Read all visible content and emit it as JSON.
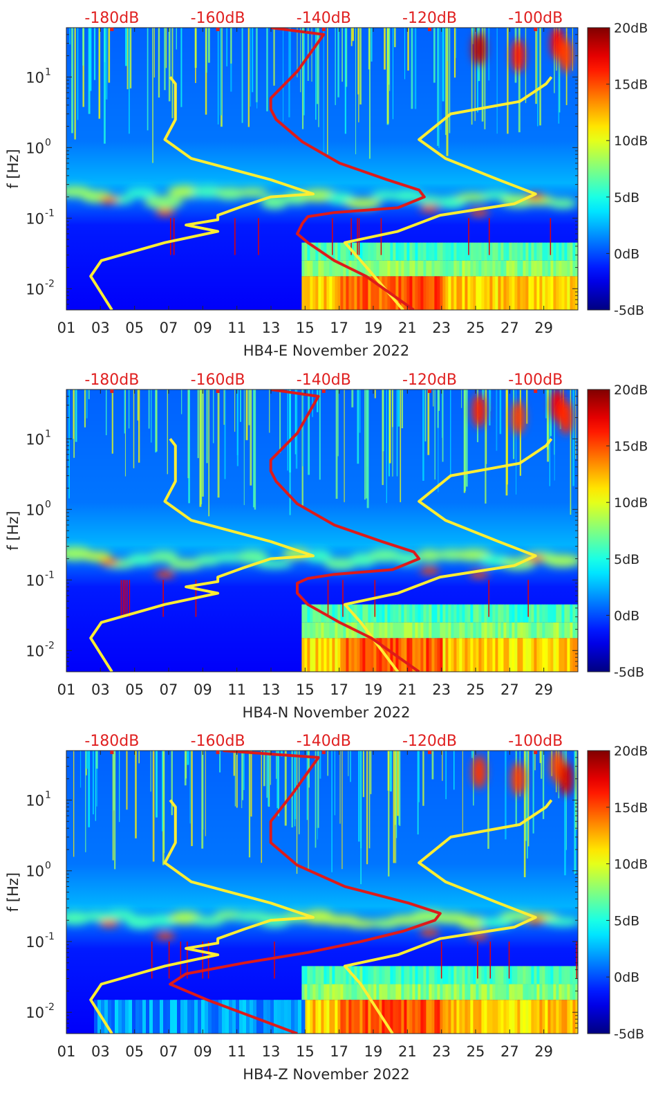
{
  "colorbar": {
    "tick_labels": [
      "20dB",
      "15dB",
      "10dB",
      "5dB",
      "0dB",
      "-5dB"
    ],
    "tick_values": [
      20,
      15,
      10,
      5,
      0,
      -5
    ],
    "range": [
      -5,
      20
    ]
  },
  "chart_data": [
    {
      "type": "heatmap",
      "title": "",
      "xlabel": "HB4-E November 2022",
      "ylabel": "f [Hz]",
      "x_ticks": [
        "01",
        "03",
        "05",
        "07",
        "09",
        "11",
        "13",
        "15",
        "17",
        "19",
        "21",
        "23",
        "25",
        "27",
        "29"
      ],
      "x_tick_values": [
        1,
        3,
        5,
        7,
        9,
        11,
        13,
        15,
        17,
        19,
        21,
        23,
        25,
        27,
        29
      ],
      "xlim": [
        1,
        31
      ],
      "y_ticks": [
        "10-2",
        "10-1",
        "100",
        "101"
      ],
      "y_tick_values": [
        0.01,
        0.1,
        1,
        10
      ],
      "ylim": [
        0.005,
        50
      ],
      "yscale": "log",
      "top_axis_labels": [
        "-180dB",
        "-160dB",
        "-140dB",
        "-120dB",
        "-100dB"
      ],
      "top_axis_values": [
        -180,
        -160,
        -140,
        -120,
        -100
      ],
      "top_axis_range": [
        -188.6,
        -92
      ],
      "series": [
        {
          "color": "#ffee33",
          "points": [
            [
              -180,
              0.005
            ],
            [
              -184,
              0.015
            ],
            [
              -182,
              0.025
            ],
            [
              -170,
              0.045
            ],
            [
              -160,
              0.065
            ],
            [
              -166,
              0.08
            ],
            [
              -160,
              0.095
            ],
            [
              -160,
              0.11
            ],
            [
              -155,
              0.15
            ],
            [
              -150,
              0.2
            ],
            [
              -142,
              0.22
            ],
            [
              -150,
              0.35
            ],
            [
              -165,
              0.7
            ],
            [
              -170,
              1.3
            ],
            [
              -168,
              2.5
            ],
            [
              -168,
              8
            ],
            [
              -169,
              10
            ]
          ]
        },
        {
          "color": "#ffee33",
          "points": [
            [
              -125,
              0.005
            ],
            [
              -133,
              0.025
            ],
            [
              -136,
              0.045
            ],
            [
              -126,
              0.065
            ],
            [
              -118,
              0.11
            ],
            [
              -104,
              0.16
            ],
            [
              -100,
              0.22
            ],
            [
              -107,
              0.35
            ],
            [
              -117,
              0.7
            ],
            [
              -122,
              1.3
            ],
            [
              -116,
              3
            ],
            [
              -103,
              4.5
            ],
            [
              -98,
              8
            ],
            [
              -97,
              10
            ]
          ]
        },
        {
          "color": "#dd1a1a",
          "points": [
            [
              -123,
              0.005
            ],
            [
              -132,
              0.015
            ],
            [
              -138,
              0.025
            ],
            [
              -143,
              0.045
            ],
            [
              -145,
              0.06
            ],
            [
              -144,
              0.085
            ],
            [
              -143,
              0.105
            ],
            [
              -138,
              0.12
            ],
            [
              -126,
              0.14
            ],
            [
              -121,
              0.2
            ],
            [
              -122,
              0.25
            ],
            [
              -128,
              0.35
            ],
            [
              -137,
              0.6
            ],
            [
              -144,
              1.2
            ],
            [
              -149,
              2.5
            ],
            [
              -150,
              3.5
            ],
            [
              -150,
              5
            ],
            [
              -145,
              12
            ],
            [
              -140,
              40
            ],
            [
              -150,
              50
            ]
          ]
        }
      ]
    },
    {
      "type": "heatmap",
      "title": "",
      "xlabel": "HB4-N November 2022",
      "ylabel": "f [Hz]",
      "x_ticks": [
        "01",
        "03",
        "05",
        "07",
        "09",
        "11",
        "13",
        "15",
        "17",
        "19",
        "21",
        "23",
        "25",
        "27",
        "29"
      ],
      "x_tick_values": [
        1,
        3,
        5,
        7,
        9,
        11,
        13,
        15,
        17,
        19,
        21,
        23,
        25,
        27,
        29
      ],
      "xlim": [
        1,
        31
      ],
      "y_ticks": [
        "10-2",
        "10-1",
        "100",
        "101"
      ],
      "y_tick_values": [
        0.01,
        0.1,
        1,
        10
      ],
      "ylim": [
        0.005,
        50
      ],
      "yscale": "log",
      "top_axis_labels": [
        "-180dB",
        "-160dB",
        "-140dB",
        "-120dB",
        "-100dB"
      ],
      "top_axis_values": [
        -180,
        -160,
        -140,
        -120,
        -100
      ],
      "top_axis_range": [
        -188.6,
        -92
      ],
      "series": [
        {
          "color": "#ffee33",
          "points": [
            [
              -180,
              0.005
            ],
            [
              -184,
              0.015
            ],
            [
              -182,
              0.025
            ],
            [
              -170,
              0.045
            ],
            [
              -160,
              0.065
            ],
            [
              -166,
              0.08
            ],
            [
              -160,
              0.095
            ],
            [
              -160,
              0.11
            ],
            [
              -155,
              0.15
            ],
            [
              -150,
              0.2
            ],
            [
              -142,
              0.22
            ],
            [
              -150,
              0.35
            ],
            [
              -165,
              0.7
            ],
            [
              -170,
              1.3
            ],
            [
              -168,
              2.5
            ],
            [
              -168,
              8
            ],
            [
              -169,
              10
            ]
          ]
        },
        {
          "color": "#ffee33",
          "points": [
            [
              -126,
              0.005
            ],
            [
              -133,
              0.025
            ],
            [
              -136,
              0.045
            ],
            [
              -126,
              0.065
            ],
            [
              -118,
              0.11
            ],
            [
              -104,
              0.16
            ],
            [
              -100,
              0.22
            ],
            [
              -107,
              0.35
            ],
            [
              -117,
              0.7
            ],
            [
              -122,
              1.3
            ],
            [
              -116,
              3
            ],
            [
              -103,
              4.5
            ],
            [
              -98,
              8
            ],
            [
              -97,
              10
            ]
          ]
        },
        {
          "color": "#dd1a1a",
          "points": [
            [
              -122,
              0.005
            ],
            [
              -131,
              0.015
            ],
            [
              -137,
              0.025
            ],
            [
              -143,
              0.045
            ],
            [
              -145,
              0.065
            ],
            [
              -145,
              0.09
            ],
            [
              -143,
              0.105
            ],
            [
              -138,
              0.12
            ],
            [
              -127,
              0.14
            ],
            [
              -122,
              0.2
            ],
            [
              -123,
              0.25
            ],
            [
              -129,
              0.35
            ],
            [
              -138,
              0.6
            ],
            [
              -145,
              1.2
            ],
            [
              -149,
              2.5
            ],
            [
              -150,
              3.5
            ],
            [
              -150,
              5
            ],
            [
              -145,
              12
            ],
            [
              -141,
              40
            ],
            [
              -150,
              50
            ]
          ]
        }
      ]
    },
    {
      "type": "heatmap",
      "title": "",
      "xlabel": "HB4-Z November 2022",
      "ylabel": "f [Hz]",
      "x_ticks": [
        "01",
        "03",
        "05",
        "07",
        "09",
        "11",
        "13",
        "15",
        "17",
        "19",
        "21",
        "23",
        "25",
        "27",
        "29"
      ],
      "x_tick_values": [
        1,
        3,
        5,
        7,
        9,
        11,
        13,
        15,
        17,
        19,
        21,
        23,
        25,
        27,
        29
      ],
      "xlim": [
        1,
        31
      ],
      "y_ticks": [
        "10-2",
        "10-1",
        "100",
        "101"
      ],
      "y_tick_values": [
        0.01,
        0.1,
        1,
        10
      ],
      "ylim": [
        0.005,
        50
      ],
      "yscale": "log",
      "top_axis_labels": [
        "-180dB",
        "-160dB",
        "-140dB",
        "-120dB",
        "-100dB"
      ],
      "top_axis_values": [
        -180,
        -160,
        -140,
        -120,
        -100
      ],
      "top_axis_range": [
        -188.6,
        -92
      ],
      "series": [
        {
          "color": "#ffee33",
          "points": [
            [
              -180,
              0.005
            ],
            [
              -184,
              0.015
            ],
            [
              -182,
              0.025
            ],
            [
              -170,
              0.045
            ],
            [
              -160,
              0.065
            ],
            [
              -166,
              0.08
            ],
            [
              -160,
              0.095
            ],
            [
              -160,
              0.11
            ],
            [
              -155,
              0.15
            ],
            [
              -150,
              0.2
            ],
            [
              -142,
              0.22
            ],
            [
              -150,
              0.35
            ],
            [
              -165,
              0.7
            ],
            [
              -170,
              1.3
            ],
            [
              -168,
              2.5
            ],
            [
              -168,
              8
            ],
            [
              -169,
              10
            ]
          ]
        },
        {
          "color": "#ffee33",
          "points": [
            [
              -127,
              0.005
            ],
            [
              -133,
              0.025
            ],
            [
              -136,
              0.045
            ],
            [
              -126,
              0.065
            ],
            [
              -118,
              0.11
            ],
            [
              -104,
              0.16
            ],
            [
              -100,
              0.22
            ],
            [
              -107,
              0.35
            ],
            [
              -117,
              0.7
            ],
            [
              -122,
              1.3
            ],
            [
              -116,
              3
            ],
            [
              -103,
              4.5
            ],
            [
              -98,
              8
            ],
            [
              -97,
              10
            ]
          ]
        },
        {
          "color": "#dd1a1a",
          "points": [
            [
              -145,
              0.005
            ],
            [
              -162,
              0.015
            ],
            [
              -169,
              0.025
            ],
            [
              -166,
              0.035
            ],
            [
              -155,
              0.05
            ],
            [
              -143,
              0.07
            ],
            [
              -133,
              0.1
            ],
            [
              -125,
              0.14
            ],
            [
              -119,
              0.2
            ],
            [
              -118,
              0.25
            ],
            [
              -124,
              0.35
            ],
            [
              -136,
              0.6
            ],
            [
              -145,
              1.2
            ],
            [
              -150,
              2.5
            ],
            [
              -150,
              5
            ],
            [
              -146,
              12
            ],
            [
              -141,
              40
            ],
            [
              -159,
              50
            ]
          ]
        }
      ]
    }
  ]
}
